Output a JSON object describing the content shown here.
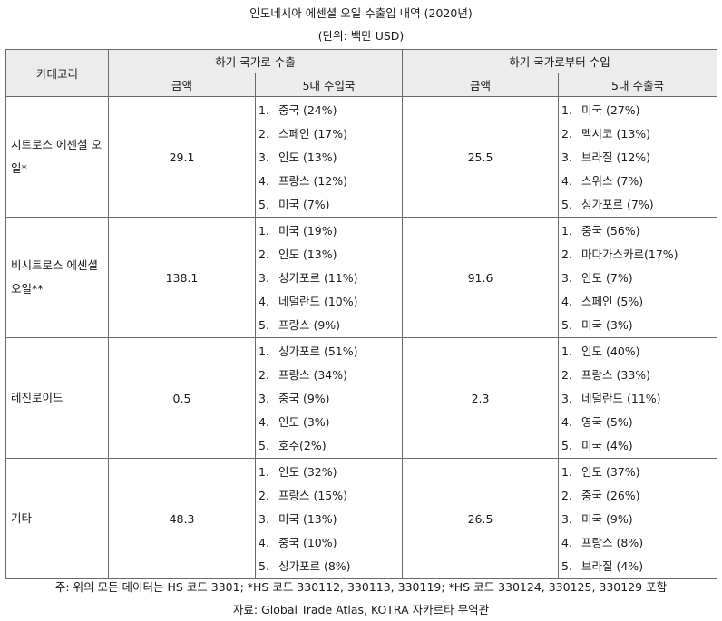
{
  "title": "인도네시아 에센셜 오일 수출입 내역 (2020년)",
  "unit": "(단위: 백만 USD)",
  "headers": {
    "category": "카테고리",
    "export_group": "하기 국가로 수출",
    "import_group": "하기 국가로부터 수입",
    "amount": "금액",
    "top5_importers": "5대 수입국",
    "top5_exporters": "5대 수출국"
  },
  "rows": [
    {
      "category": "시트로스 에센셜 오일*",
      "export_amount": "29.1",
      "export_countries": [
        "중국 (24%)",
        "스페인 (17%)",
        "인도 (13%)",
        "프랑스 (12%)",
        "미국 (7%)"
      ],
      "import_amount": "25.5",
      "import_countries": [
        "미국 (27%)",
        "멕시코 (13%)",
        "브라질 (12%)",
        "스위스 (7%)",
        "싱가포르 (7%)"
      ]
    },
    {
      "category": "비시트로스 에센셜 오일**",
      "export_amount": "138.1",
      "export_countries": [
        "미국 (19%)",
        "인도 (13%)",
        "싱가포르 (11%)",
        "네덜란드 (10%)",
        "프랑스 (9%)"
      ],
      "import_amount": "91.6",
      "import_countries": [
        "중국 (56%)",
        "마다가스카르(17%)",
        "인도 (7%)",
        "스페인 (5%)",
        "미국 (3%)"
      ]
    },
    {
      "category": "레진로이드",
      "export_amount": "0.5",
      "export_countries": [
        "싱가포르 (51%)",
        "프랑스 (34%)",
        "중국 (9%)",
        "인도 (3%)",
        "호주(2%)"
      ],
      "import_amount": "2.3",
      "import_countries": [
        "인도 (40%)",
        "프랑스 (33%)",
        "네덜란드 (11%)",
        "영국 (5%)",
        "미국 (4%)"
      ]
    },
    {
      "category": "기타",
      "export_amount": "48.3",
      "export_countries": [
        "인도 (32%)",
        "프랑스 (15%)",
        "미국 (13%)",
        "중국 (10%)",
        "싱가포르 (8%)"
      ],
      "import_amount": "26.5",
      "import_countries": [
        "인도 (37%)",
        "중국 (26%)",
        "미국 (9%)",
        "프랑스 (8%)",
        "브라질 (4%)"
      ]
    }
  ],
  "note": "주: 위의 모든 데이터는 HS 코드 3301; *HS 코드 330112, 330113, 330119; *HS 코드 330124, 330125, 330129 포함",
  "source": "자료: Global Trade Atlas, KOTRA 자카르타 무역관"
}
